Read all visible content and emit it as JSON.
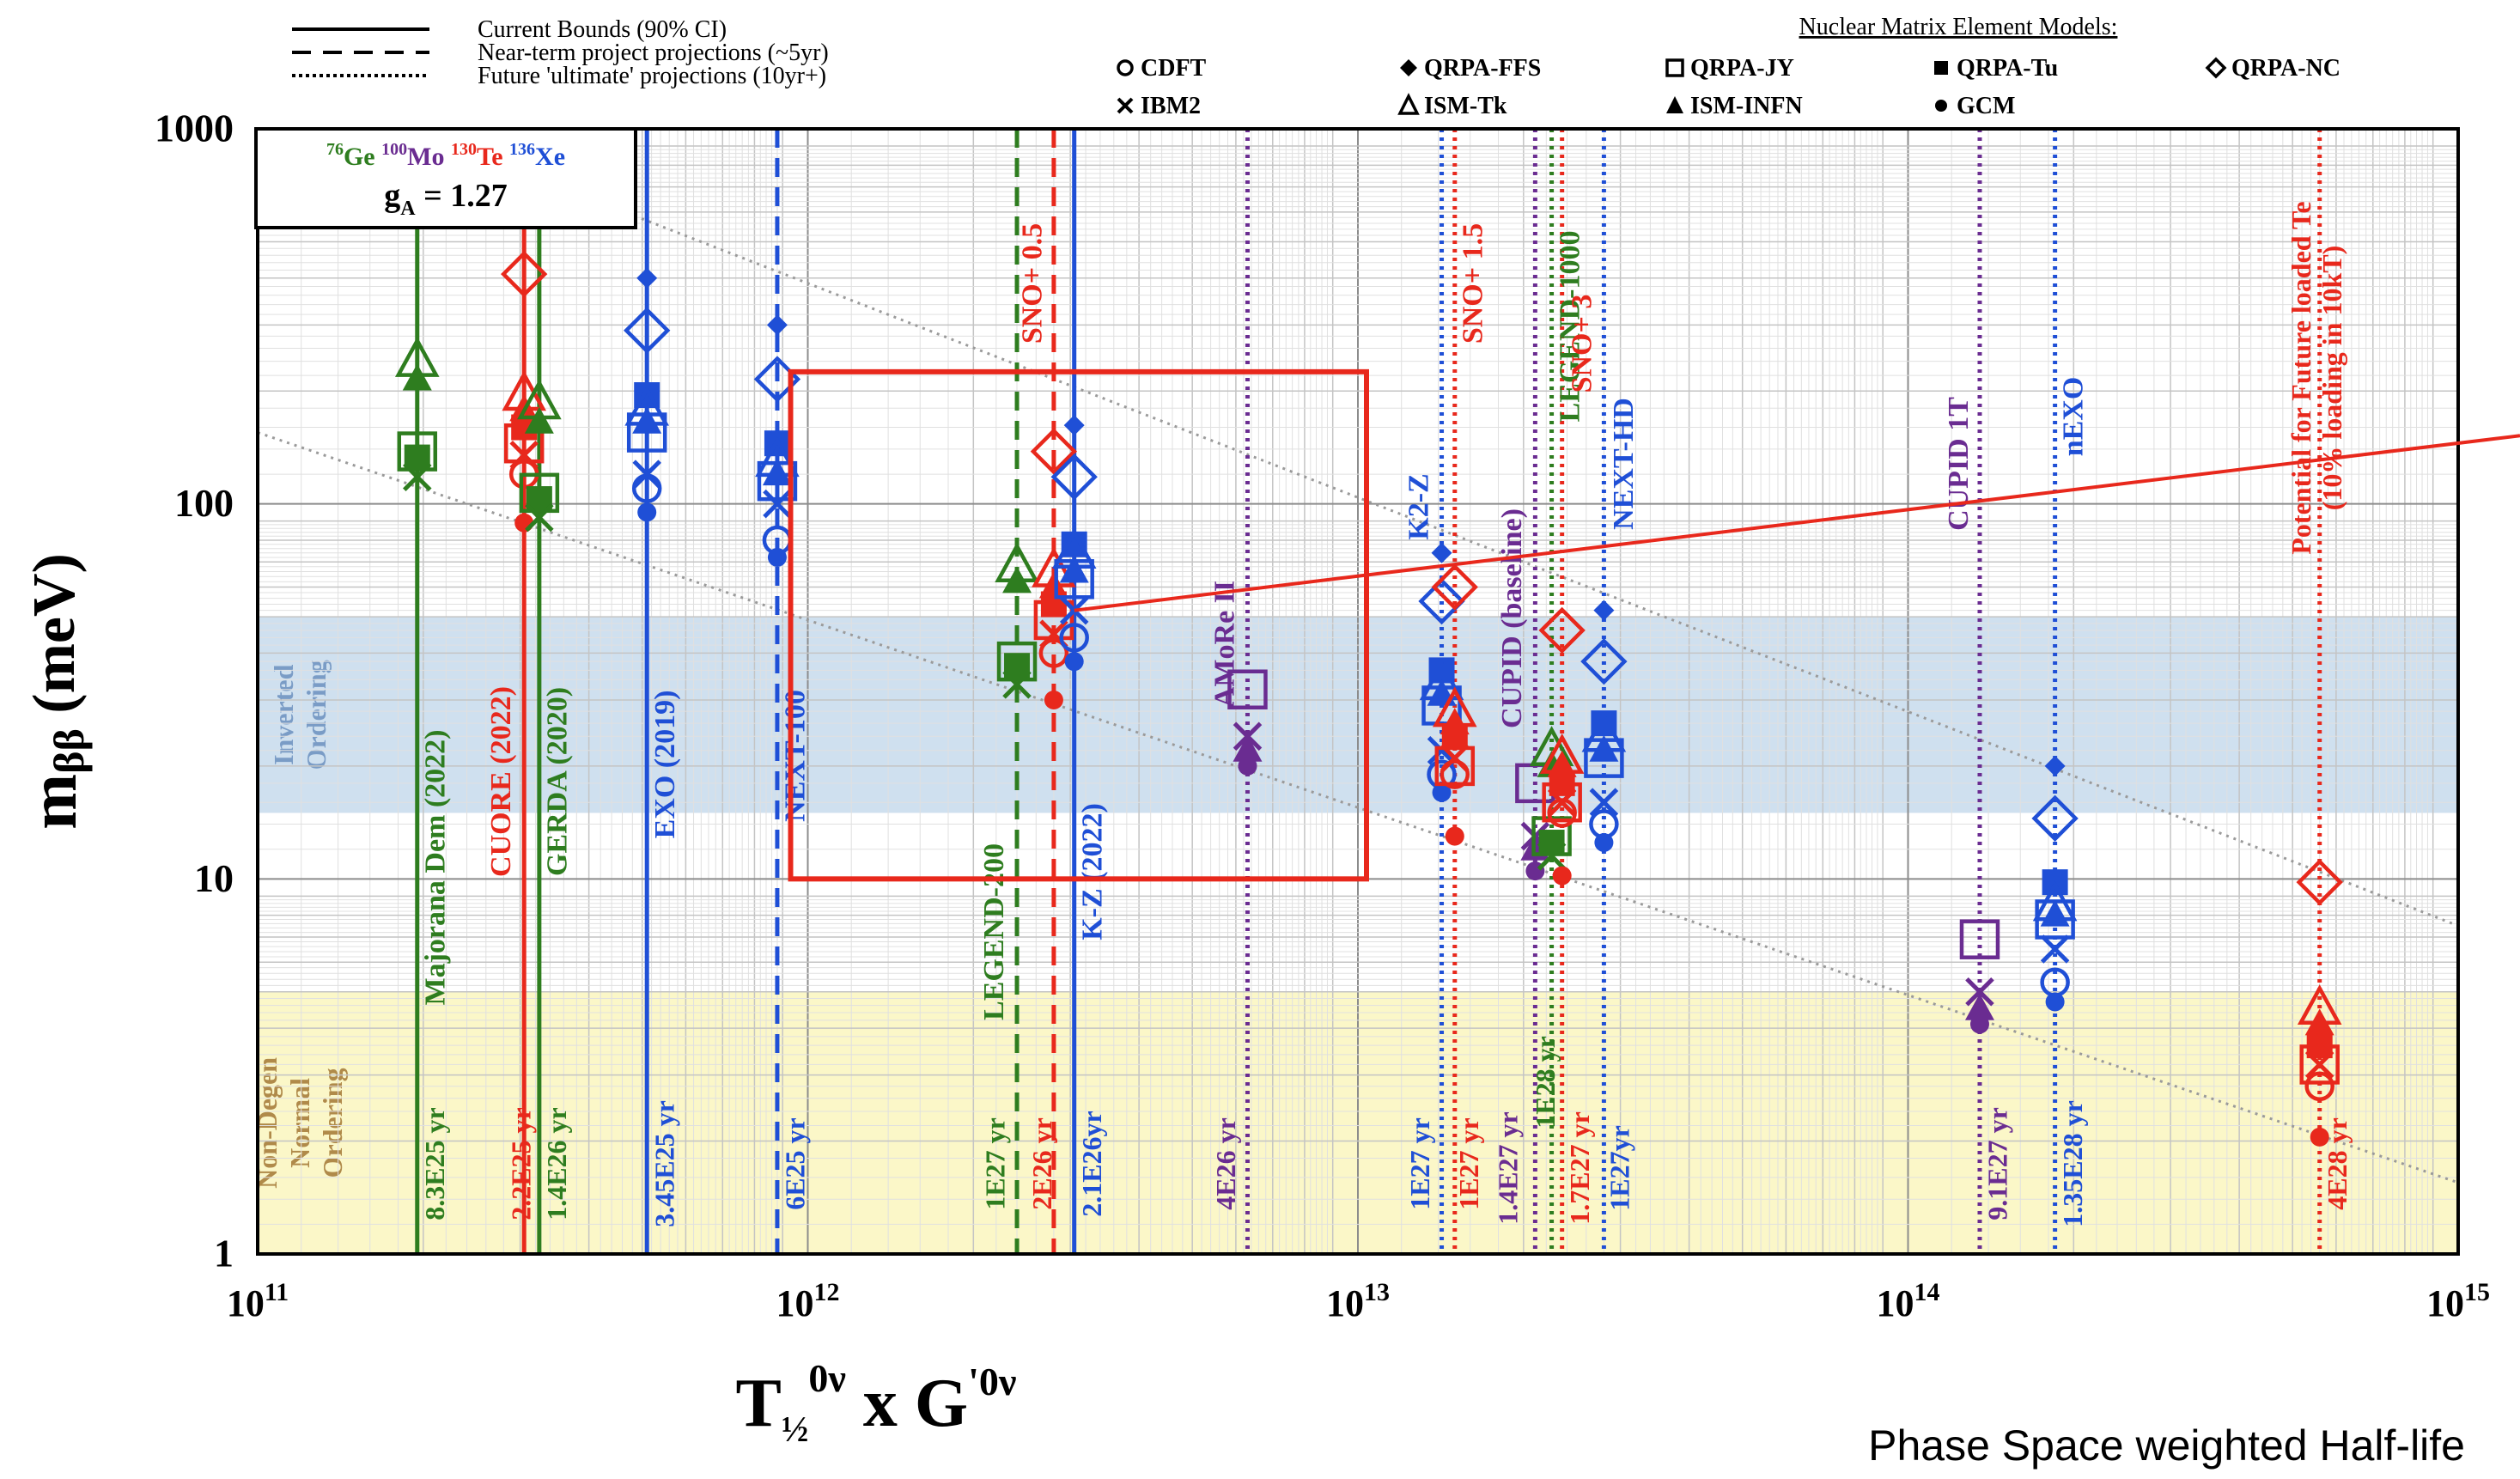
{
  "chart_data": {
    "type": "scatter",
    "x_scale": "log",
    "y_scale": "log",
    "xlim": [
      100000000000.0,
      1000000000000000.0
    ],
    "ylim": [
      1,
      1000
    ],
    "grid": true,
    "x_tick_labels": [
      {
        "value": 100000000000.0,
        "base": "10",
        "exp": "11"
      },
      {
        "value": 1000000000000.0,
        "base": "10",
        "exp": "12"
      },
      {
        "value": 10000000000000.0,
        "base": "10",
        "exp": "13"
      },
      {
        "value": 100000000000000.0,
        "base": "10",
        "exp": "14"
      },
      {
        "value": 1000000000000000.0,
        "base": "10",
        "exp": "15"
      }
    ],
    "y_tick_labels": [
      {
        "value": 1,
        "text": "1"
      },
      {
        "value": 10,
        "text": "10"
      },
      {
        "value": 100,
        "text": "100"
      },
      {
        "value": 1000,
        "text": "1000"
      }
    ],
    "ylabel": {
      "main": "m",
      "sub": "ββ",
      "unit": " (meV)"
    },
    "xlabel": {
      "main": "T",
      "sub": "½",
      "sup": "0ν",
      "mid": "  x  G",
      "sup2": "'0ν"
    },
    "caption": "Phase Space weighted Half-life",
    "legend_lines": [
      {
        "style": "solid",
        "label": "Current Bounds (90% CI)"
      },
      {
        "style": "dashed",
        "label": "Near-term project projections (~5yr)"
      },
      {
        "style": "dotted",
        "label": "Future 'ultimate' projections (10yr+)"
      }
    ],
    "nme_title": "Nuclear Matrix Element Models:",
    "nme_models": [
      {
        "marker": "circle-open",
        "label": "CDFT"
      },
      {
        "marker": "diamond-filled",
        "label": "QRPA-FFS"
      },
      {
        "marker": "square-open",
        "label": "QRPA-JY"
      },
      {
        "marker": "square-filled",
        "label": "QRPA-Tu"
      },
      {
        "marker": "diamond-open",
        "label": "QRPA-NC"
      },
      {
        "marker": "x",
        "label": "IBM2"
      },
      {
        "marker": "triangle-open",
        "label": "ISM-Tk"
      },
      {
        "marker": "triangle-filled",
        "label": "ISM-INFN"
      },
      {
        "marker": "circle-filled",
        "label": "GCM"
      }
    ],
    "isotopes": [
      {
        "mass": "76",
        "symbol": "Ge",
        "color": "#2e7d1f"
      },
      {
        "mass": "100",
        "symbol": "Mo",
        "color": "#6a2c91"
      },
      {
        "mass": "130",
        "symbol": "Te",
        "color": "#e8281c"
      },
      {
        "mass": "136",
        "symbol": "Xe",
        "color": "#1f4fd6"
      }
    ],
    "ga_label": {
      "main": "g",
      "sub": "A",
      "rest": " = 1.27"
    },
    "bands": [
      {
        "name": "Inverted Ordering",
        "lines": [
          "Inverted",
          "Ordering"
        ],
        "y_range": [
          15,
          50
        ],
        "color": "#cfe0ef",
        "text_color": "#7a9cc6"
      },
      {
        "name": "Non-Degen Normal Ordering",
        "lines": [
          "Non-Degen",
          "Normal",
          "Ordering"
        ],
        "y_range": [
          1,
          5
        ],
        "color": "#fbf7c8",
        "text_color": "#b08a4a"
      }
    ],
    "diagonals": [
      {
        "points": [
          [
            190000000000.0,
            1000
          ],
          [
            1000000000000000.0,
            7.5
          ]
        ]
      },
      {
        "points": [
          [
            100000000000.0,
            155
          ],
          [
            1000000000000000.0,
            1.55
          ]
        ]
      }
    ],
    "experiments": [
      {
        "name": "Majorana Dem  (2022)",
        "halflife": "8.3E25 yr",
        "x": 195000000000.0,
        "style": "solid",
        "color": "#2e7d1f",
        "markers": {
          "diamond-open": 0,
          "circle-open": 0,
          "diamond-filled": 0,
          "square-open": 138,
          "square-filled": 133,
          "x": 118,
          "triangle-open": 240,
          "triangle-filled": 215,
          "circle-filled": 0
        }
      },
      {
        "name": "CUORE (2022)",
        "halflife": "2.2E25 yr",
        "x": 305000000000.0,
        "style": "solid",
        "color": "#e8281c",
        "markers": {
          "diamond-open": 410,
          "circle-open": 120,
          "diamond-filled": 0,
          "square-open": 145,
          "square-filled": 160,
          "x": 135,
          "triangle-open": 195,
          "triangle-filled": 178,
          "circle-filled": 89
        }
      },
      {
        "name": "GERDA (2020)",
        "halflife": "1.4E26 yr",
        "x": 325000000000.0,
        "style": "solid",
        "color": "#2e7d1f",
        "markers": {
          "diamond-open": 0,
          "circle-open": 0,
          "diamond-filled": 0,
          "square-open": 107,
          "square-filled": 103,
          "x": 92,
          "triangle-open": 185,
          "triangle-filled": 165,
          "circle-filled": 0
        }
      },
      {
        "name": "EXO (2019)",
        "halflife": "3.45E25 yr",
        "x": 510000000000.0,
        "style": "solid",
        "color": "#1f4fd6",
        "markers": {
          "diamond-open": 290,
          "circle-open": 110,
          "diamond-filled": 400,
          "square-open": 155,
          "square-filled": 195,
          "x": 120,
          "triangle-open": 178,
          "triangle-filled": 165,
          "circle-filled": 95
        }
      },
      {
        "name": "NEXT-100",
        "halflife": "6E25 yr",
        "x": 880000000000.0,
        "style": "dashed",
        "color": "#1f4fd6",
        "markers": {
          "diamond-open": 215,
          "circle-open": 80,
          "diamond-filled": 300,
          "square-open": 115,
          "square-filled": 145,
          "x": 100,
          "triangle-open": 130,
          "triangle-filled": 120,
          "circle-filled": 72
        }
      },
      {
        "name": "LEGEND-200",
        "halflife": "1E27 yr",
        "x": 2400000000000.0,
        "style": "dashed",
        "color": "#2e7d1f",
        "markers": {
          "diamond-open": 0,
          "circle-open": 0,
          "diamond-filled": 0,
          "square-open": 38,
          "square-filled": 37,
          "x": 33,
          "triangle-open": 68,
          "triangle-filled": 62,
          "circle-filled": 0
        }
      },
      {
        "name": "SNO+ 0.5",
        "halflife": "2E26 yr",
        "x": 2800000000000.0,
        "style": "dashed",
        "color": "#e8281c",
        "markers": {
          "diamond-open": 138,
          "circle-open": 40,
          "diamond-filled": 0,
          "square-open": 49,
          "square-filled": 54,
          "x": 45,
          "triangle-open": 66,
          "triangle-filled": 60,
          "circle-filled": 30
        }
      },
      {
        "name": "K-Z (2022)",
        "halflife": "2.1E26yr",
        "x": 3050000000000.0,
        "style": "solid",
        "color": "#1f4fd6",
        "markers": {
          "diamond-open": 118,
          "circle-open": 44,
          "diamond-filled": 162,
          "square-open": 63,
          "square-filled": 78,
          "x": 52,
          "triangle-open": 74,
          "triangle-filled": 66,
          "circle-filled": 38
        }
      },
      {
        "name": "AMoRe II",
        "halflife": "4E26 yr",
        "x": 6300000000000.0,
        "style": "dotted",
        "color": "#6a2c91",
        "markers": {
          "diamond-open": 0,
          "circle-open": 0,
          "diamond-filled": 0,
          "square-open": 32,
          "square-filled": 0,
          "x": 24,
          "triangle-open": 0,
          "triangle-filled": 22,
          "circle-filled": 20
        }
      },
      {
        "name": "K2-Z",
        "halflife": "1E27 yr",
        "x": 14200000000000.0,
        "style": "dotted",
        "color": "#1f4fd6",
        "markers": {
          "diamond-open": 55,
          "circle-open": 19,
          "diamond-filled": 74,
          "square-open": 29,
          "square-filled": 36,
          "x": 22,
          "triangle-open": 33,
          "triangle-filled": 31,
          "circle-filled": 17
        }
      },
      {
        "name": "SNO+ 1.5",
        "halflife": "1E27 yr",
        "x": 15000000000000.0,
        "style": "dotted",
        "color": "#e8281c",
        "markers": {
          "diamond-open": 60,
          "circle-open": 19,
          "diamond-filled": 0,
          "square-open": 20,
          "square-filled": 24,
          "x": 21,
          "triangle-open": 28,
          "triangle-filled": 26,
          "circle-filled": 13
        }
      },
      {
        "name": "CUPID (baseline)",
        "halflife": "1.4E27 yr",
        "x": 21000000000000.0,
        "style": "dotted",
        "color": "#6a2c91",
        "markers": {
          "diamond-open": 0,
          "circle-open": 0,
          "diamond-filled": 0,
          "square-open": 18,
          "square-filled": 0,
          "x": 13,
          "triangle-open": 0,
          "triangle-filled": 12,
          "circle-filled": 10.5
        }
      },
      {
        "name": "LEGEND-1000",
        "halflife": "1E28 yr",
        "x": 22500000000000.0,
        "style": "dotted",
        "color": "#2e7d1f",
        "markers": {
          "diamond-open": 0,
          "circle-open": 0,
          "diamond-filled": 0,
          "square-open": 13,
          "square-filled": 12.5,
          "x": 11.5,
          "triangle-open": 22,
          "triangle-filled": 20,
          "circle-filled": 0
        }
      },
      {
        "name": "SNO+ 3",
        "halflife": "1.7E27 yr",
        "x": 23500000000000.0,
        "style": "dotted",
        "color": "#e8281c",
        "markers": {
          "diamond-open": 46,
          "circle-open": 15,
          "diamond-filled": 0,
          "square-open": 16,
          "square-filled": 18,
          "x": 16,
          "triangle-open": 21,
          "triangle-filled": 20,
          "circle-filled": 10.2
        }
      },
      {
        "name": "NEXT-HD",
        "halflife": "1E27yr",
        "x": 28000000000000.0,
        "style": "dotted",
        "color": "#1f4fd6",
        "markers": {
          "diamond-open": 38,
          "circle-open": 14,
          "diamond-filled": 52,
          "square-open": 21,
          "square-filled": 26,
          "x": 16,
          "triangle-open": 24,
          "triangle-filled": 22,
          "circle-filled": 12.5
        }
      },
      {
        "name": "CUPID 1T",
        "halflife": "9.1E27 yr",
        "x": 135000000000000.0,
        "style": "dotted",
        "color": "#6a2c91",
        "markers": {
          "diamond-open": 0,
          "circle-open": 0,
          "diamond-filled": 0,
          "square-open": 6.9,
          "square-filled": 0,
          "x": 5,
          "triangle-open": 0,
          "triangle-filled": 4.5,
          "circle-filled": 4.1
        }
      },
      {
        "name": "nEXO",
        "halflife": "1.35E28 yr",
        "x": 185000000000000.0,
        "style": "dotted",
        "color": "#1f4fd6",
        "markers": {
          "diamond-open": 14.5,
          "circle-open": 5.3,
          "diamond-filled": 20,
          "square-open": 7.8,
          "square-filled": 9.8,
          "x": 6.5,
          "triangle-open": 8.5,
          "triangle-filled": 8,
          "circle-filled": 4.7
        }
      },
      {
        "name": "Potential for Future loaded Te\n(10% loading in 10kT)",
        "halflife": "4E28 yr",
        "x": 560000000000000.0,
        "style": "dotted",
        "color": "#e8281c",
        "markers": {
          "diamond-open": 9.8,
          "circle-open": 2.8,
          "diamond-filled": 0,
          "square-open": 3.2,
          "square-filled": 3.6,
          "x": 3.2,
          "triangle-open": 4.5,
          "triangle-filled": 4.1,
          "circle-filled": 2.05
        }
      }
    ],
    "highlight_box": {
      "x_range": [
        1000000000000.0,
        10000000000000.0
      ],
      "y_range": [
        10,
        225
      ],
      "color": "#e8281c"
    },
    "pointer": {
      "from_value": [
        3050000000000.0,
        52
      ],
      "to_edge_y_value": 152,
      "color": "#e8281c"
    }
  }
}
